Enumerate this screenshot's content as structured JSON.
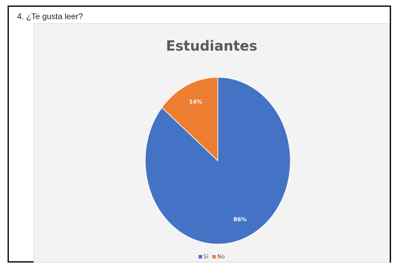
{
  "question": "4.  ¿Te gusta leer?",
  "chart_data": {
    "type": "pie",
    "title": "Estudiantes",
    "categories": [
      "Si",
      "No"
    ],
    "values": [
      86,
      14
    ],
    "labels": [
      "86%",
      "14%"
    ],
    "colors": [
      "#4472c4",
      "#ed7d31"
    ],
    "legend_position": "bottom"
  }
}
